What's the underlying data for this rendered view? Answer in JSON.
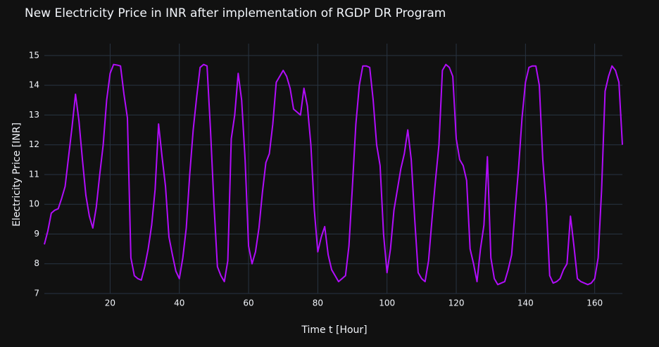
{
  "chart_data": {
    "type": "line",
    "title": "New Electricity Price in INR after implementation of RGDP DR Program",
    "xlabel": "Time t [Hour]",
    "ylabel": "Electricity Price [INR]",
    "color": "#b10dfa",
    "grid": true,
    "xlim": [
      1,
      168
    ],
    "ylim": [
      7,
      15.4
    ],
    "xticks": [
      20,
      40,
      60,
      80,
      100,
      120,
      140,
      160
    ],
    "yticks": [
      7,
      8,
      9,
      10,
      11,
      12,
      13,
      14,
      15
    ],
    "x": [
      1,
      2,
      3,
      4,
      5,
      6,
      7,
      8,
      9,
      10,
      11,
      12,
      13,
      14,
      15,
      16,
      17,
      18,
      19,
      20,
      21,
      22,
      23,
      24,
      25,
      26,
      27,
      28,
      29,
      30,
      31,
      32,
      33,
      34,
      35,
      36,
      37,
      38,
      39,
      40,
      41,
      42,
      43,
      44,
      45,
      46,
      47,
      48,
      49,
      50,
      51,
      52,
      53,
      54,
      55,
      56,
      57,
      58,
      59,
      60,
      61,
      62,
      63,
      64,
      65,
      66,
      67,
      68,
      69,
      70,
      71,
      72,
      73,
      74,
      75,
      76,
      77,
      78,
      79,
      80,
      81,
      82,
      83,
      84,
      85,
      86,
      87,
      88,
      89,
      90,
      91,
      92,
      93,
      94,
      95,
      96,
      97,
      98,
      99,
      100,
      101,
      102,
      103,
      104,
      105,
      106,
      107,
      108,
      109,
      110,
      111,
      112,
      113,
      114,
      115,
      116,
      117,
      118,
      119,
      120,
      121,
      122,
      123,
      124,
      125,
      126,
      127,
      128,
      129,
      130,
      131,
      132,
      133,
      134,
      135,
      136,
      137,
      138,
      139,
      140,
      141,
      142,
      143,
      144,
      145,
      146,
      147,
      148,
      149,
      150,
      151,
      152,
      153,
      154,
      155,
      156,
      157,
      158,
      159,
      160,
      161,
      162,
      163,
      164,
      165,
      166,
      167,
      168
    ],
    "values": [
      8.65,
      9.1,
      9.7,
      9.8,
      9.85,
      10.2,
      10.6,
      11.6,
      12.6,
      13.7,
      12.8,
      11.5,
      10.3,
      9.6,
      9.2,
      9.9,
      11.0,
      12.0,
      13.5,
      14.4,
      14.7,
      14.68,
      14.65,
      13.7,
      12.9,
      8.2,
      7.6,
      7.5,
      7.45,
      7.9,
      8.5,
      9.3,
      10.5,
      12.7,
      11.6,
      10.6,
      8.9,
      8.3,
      7.75,
      7.5,
      8.2,
      9.2,
      11.0,
      12.5,
      13.6,
      14.6,
      14.7,
      14.65,
      12.5,
      10.0,
      7.9,
      7.6,
      7.4,
      8.1,
      12.2,
      13.0,
      14.4,
      13.5,
      11.5,
      8.6,
      8.0,
      8.4,
      9.2,
      10.4,
      11.4,
      11.7,
      12.7,
      14.1,
      14.3,
      14.5,
      14.3,
      13.9,
      13.2,
      13.1,
      13.0,
      13.9,
      13.3,
      12.0,
      9.8,
      8.4,
      8.9,
      9.25,
      8.3,
      7.8,
      7.6,
      7.4,
      7.5,
      7.6,
      8.6,
      10.6,
      12.7,
      14.0,
      14.65,
      14.65,
      14.6,
      13.5,
      12.0,
      11.3,
      9.0,
      7.7,
      8.5,
      9.8,
      10.5,
      11.2,
      11.7,
      12.5,
      11.5,
      9.5,
      7.7,
      7.5,
      7.4,
      8.1,
      9.5,
      10.8,
      12.0,
      14.5,
      14.7,
      14.6,
      14.3,
      12.2,
      11.5,
      11.3,
      10.8,
      8.5,
      8.0,
      7.4,
      8.5,
      9.3,
      11.6,
      8.2,
      7.5,
      7.3,
      7.35,
      7.4,
      7.8,
      8.3,
      9.8,
      11.2,
      12.9,
      14.1,
      14.6,
      14.65,
      14.65,
      14.0,
      11.5,
      10.0,
      7.6,
      7.35,
      7.4,
      7.5,
      7.8,
      8.0,
      9.6,
      8.6,
      7.5,
      7.4,
      7.35,
      7.3,
      7.35,
      7.5,
      8.2,
      10.5,
      13.8,
      14.3,
      14.65,
      14.5,
      14.1,
      12.0
    ]
  }
}
